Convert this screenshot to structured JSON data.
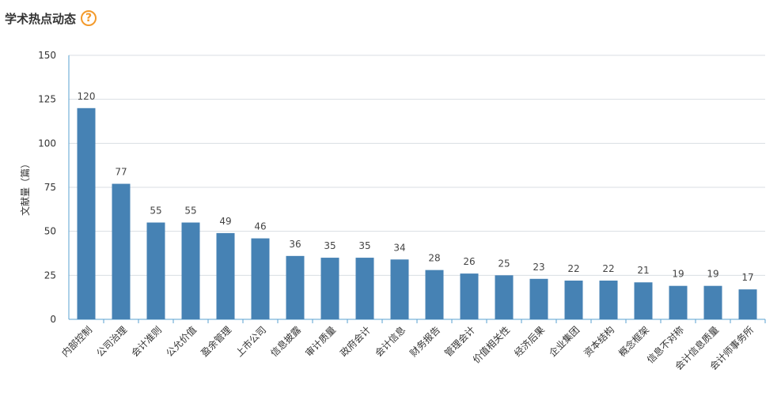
{
  "header": {
    "title": "学术热点动态",
    "help_icon": "question-circle-icon",
    "help_glyph": "?"
  },
  "colors": {
    "bar": "#4682b4",
    "grid": "#d9dee3",
    "axis": "#5aa0d0",
    "help": "#f39a2b"
  },
  "chart_data": {
    "type": "bar",
    "title": "",
    "ylabel": "文献量（篇）",
    "xlabel": "",
    "ylim": [
      0,
      150
    ],
    "yticks": [
      0,
      25,
      50,
      75,
      100,
      125,
      150
    ],
    "grid": true,
    "categories": [
      "内部控制",
      "公司治理",
      "会计准则",
      "公允价值",
      "盈余管理",
      "上市公司",
      "信息披露",
      "审计质量",
      "政府会计",
      "会计信息",
      "财务报告",
      "管理会计",
      "价值相关性",
      "经济后果",
      "企业集团",
      "资本结构",
      "概念框架",
      "信息不对称",
      "会计信息质量",
      "会计师事务所"
    ],
    "values": [
      120,
      77,
      55,
      55,
      49,
      46,
      36,
      35,
      35,
      34,
      28,
      26,
      25,
      23,
      22,
      22,
      21,
      19,
      19,
      17
    ]
  }
}
